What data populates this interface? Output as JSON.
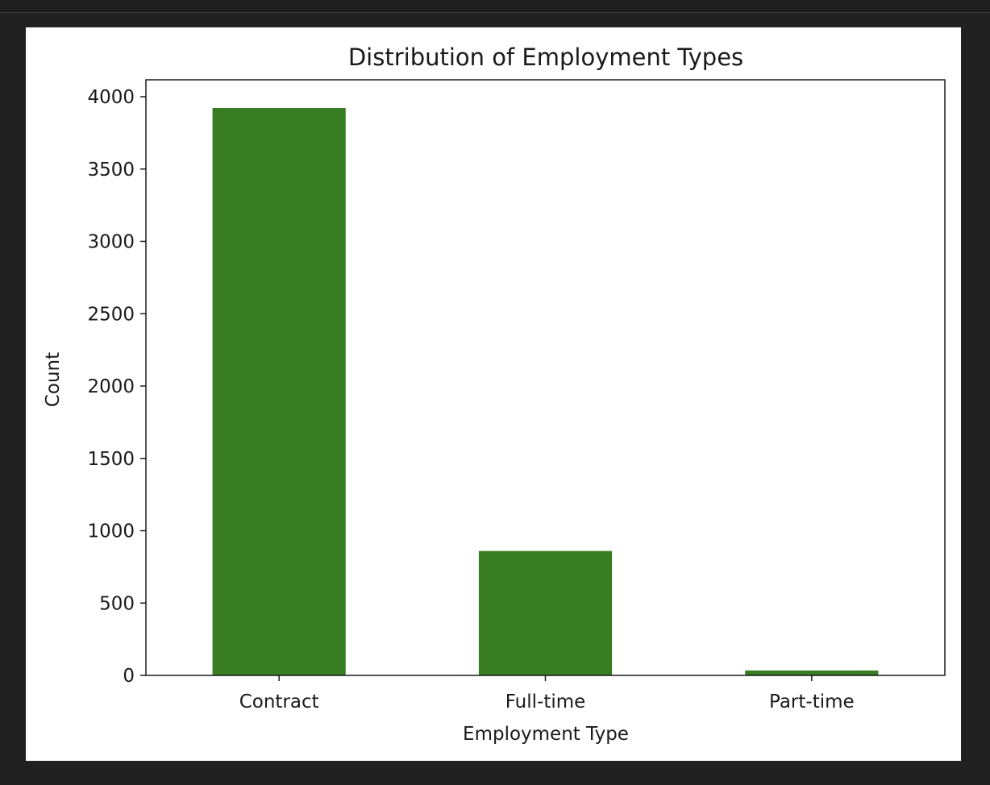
{
  "colors": {
    "bar": "#387d22",
    "background": "#212121",
    "figure": "#ffffff",
    "axis": "#1a1a1a"
  },
  "chart_data": {
    "type": "bar",
    "title": "Distribution of Employment Types",
    "xlabel": "Employment Type",
    "ylabel": "Count",
    "categories": [
      "Contract",
      "Full-time",
      "Part-time"
    ],
    "values": [
      3922,
      860,
      34
    ],
    "ylim": [
      0,
      4100
    ],
    "yticks": [
      0,
      500,
      1000,
      1500,
      2000,
      2500,
      3000,
      3500,
      4000
    ],
    "grid": false,
    "legend": "none"
  }
}
